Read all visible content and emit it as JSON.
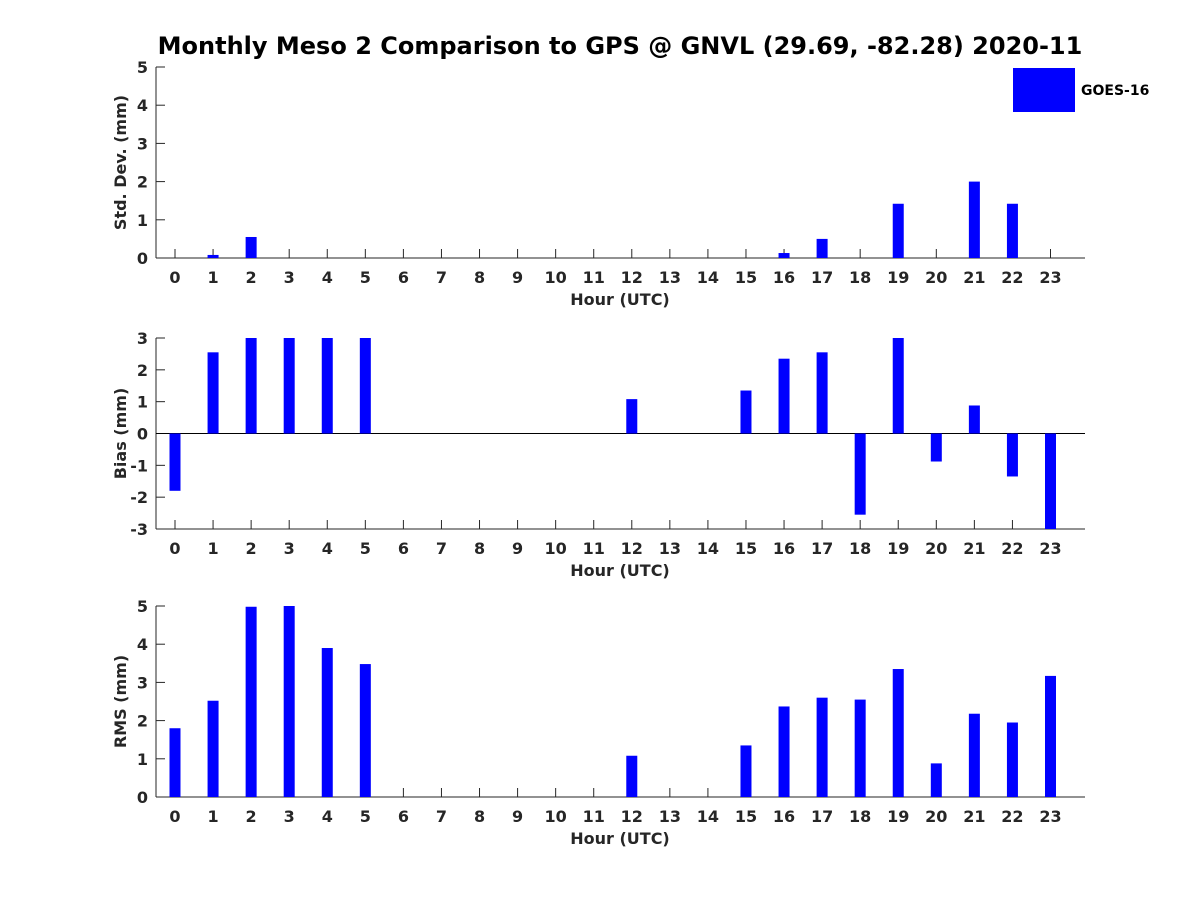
{
  "title": "Monthly Meso 2 Comparison to GPS @ GNVL (29.69, -82.28) 2020-11",
  "legend": {
    "label": "GOES-16",
    "color": "#0000ff"
  },
  "chart_data": [
    {
      "type": "bar",
      "xlabel": "Hour (UTC)",
      "ylabel": "Std. Dev. (mm)",
      "ylim": [
        0,
        5
      ],
      "yticks": [
        "0",
        "1",
        "2",
        "3",
        "4",
        "5"
      ],
      "categories": [
        "0",
        "1",
        "2",
        "3",
        "4",
        "5",
        "6",
        "7",
        "8",
        "9",
        "10",
        "11",
        "12",
        "13",
        "14",
        "15",
        "16",
        "17",
        "18",
        "19",
        "20",
        "21",
        "22",
        "23"
      ],
      "series": [
        {
          "name": "GOES-16",
          "color": "#0000ff",
          "values": [
            0,
            0.08,
            0.55,
            0,
            0,
            0,
            0,
            0,
            0,
            0,
            0,
            0,
            0,
            0,
            0,
            0,
            0.13,
            0.5,
            0,
            1.42,
            0,
            2.0,
            1.42,
            0
          ]
        }
      ]
    },
    {
      "type": "bar",
      "xlabel": "Hour (UTC)",
      "ylabel": "Bias (mm)",
      "ylim": [
        -3,
        3
      ],
      "yticks": [
        "-3",
        "-2",
        "-1",
        "0",
        "1",
        "2",
        "3"
      ],
      "categories": [
        "0",
        "1",
        "2",
        "3",
        "4",
        "5",
        "6",
        "7",
        "8",
        "9",
        "10",
        "11",
        "12",
        "13",
        "14",
        "15",
        "16",
        "17",
        "18",
        "19",
        "20",
        "21",
        "22",
        "23"
      ],
      "series": [
        {
          "name": "GOES-16",
          "color": "#0000ff",
          "values": [
            -1.8,
            2.55,
            3.0,
            3.0,
            3.0,
            3.0,
            0,
            0,
            0,
            0,
            0,
            0,
            1.08,
            0,
            0,
            1.35,
            2.35,
            2.55,
            -2.55,
            3.0,
            -0.88,
            0.88,
            -1.35,
            -3.0
          ]
        }
      ]
    },
    {
      "type": "bar",
      "xlabel": "Hour (UTC)",
      "ylabel": "RMS (mm)",
      "ylim": [
        0,
        5
      ],
      "yticks": [
        "0",
        "1",
        "2",
        "3",
        "4",
        "5"
      ],
      "categories": [
        "0",
        "1",
        "2",
        "3",
        "4",
        "5",
        "6",
        "7",
        "8",
        "9",
        "10",
        "11",
        "12",
        "13",
        "14",
        "15",
        "16",
        "17",
        "18",
        "19",
        "20",
        "21",
        "22",
        "23"
      ],
      "series": [
        {
          "name": "GOES-16",
          "color": "#0000ff",
          "values": [
            1.8,
            2.52,
            4.98,
            5.0,
            3.9,
            3.48,
            0,
            0,
            0,
            0,
            0,
            0,
            1.08,
            0,
            0,
            1.35,
            2.37,
            2.6,
            2.55,
            3.35,
            0.88,
            2.18,
            1.95,
            3.17
          ]
        }
      ]
    }
  ]
}
